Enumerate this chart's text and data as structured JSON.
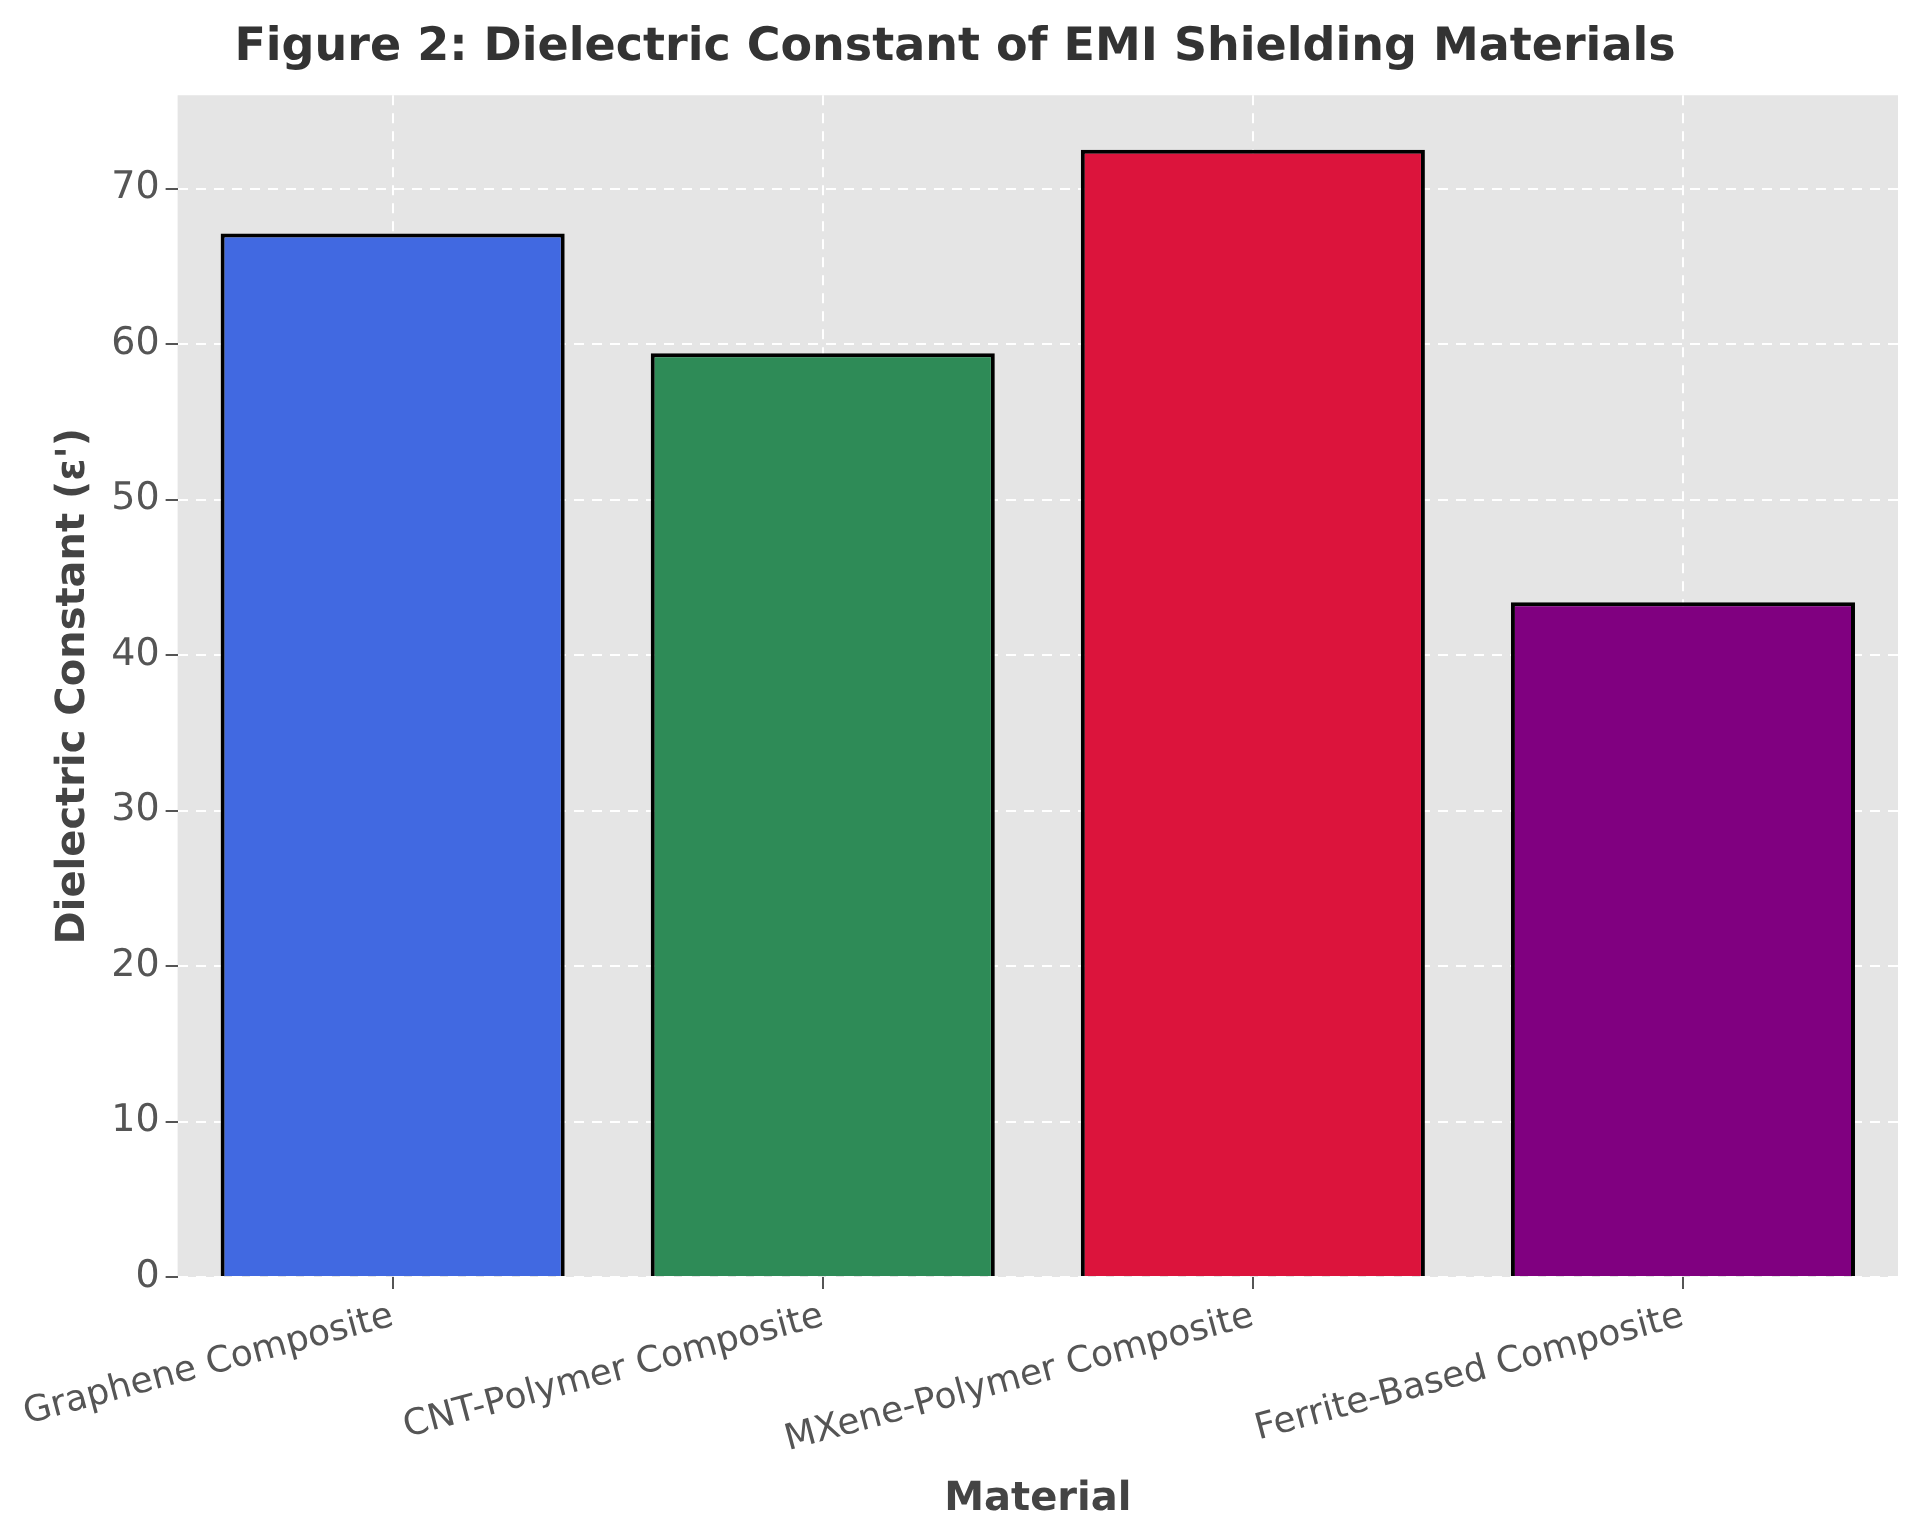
{
  "chart_data": {
    "type": "bar",
    "title": "Figure 2: Dielectric Constant of EMI Shielding Materials",
    "xlabel": "Material",
    "ylabel": "Dielectric Constant (ε')",
    "categories": [
      "Graphene Composite",
      "CNT-Polymer Composite",
      "MXene-Polymer Composite",
      "Ferrite-Based Composite"
    ],
    "values": [
      67.1,
      59.4,
      72.5,
      43.4
    ],
    "colors": [
      "#4169e1",
      "#2e8b57",
      "#dc143c",
      "#800080"
    ],
    "ylim": [
      0,
      76
    ],
    "yticks": [
      0,
      10,
      20,
      30,
      40,
      50,
      60,
      70
    ],
    "grid": true,
    "legend": false
  }
}
